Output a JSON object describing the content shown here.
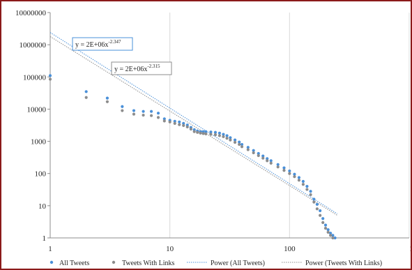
{
  "chart_data": {
    "type": "scatter",
    "x_scale": "log",
    "y_scale": "log",
    "xlim": [
      1,
      1000
    ],
    "ylim": [
      1,
      10000000
    ],
    "x_ticks": [
      "1",
      "10",
      "100",
      "1000"
    ],
    "y_ticks": [
      "1",
      "10",
      "100",
      "1000",
      "10000",
      "100000",
      "1000000",
      "10000000"
    ],
    "grid": "vertical",
    "legend_position": "bottom",
    "series": [
      {
        "name": "All Tweets",
        "kind": "points",
        "color": "#4a90d9",
        "x": [
          1,
          2,
          3,
          4,
          5,
          6,
          7,
          8,
          9,
          10,
          11,
          12,
          13,
          14,
          15,
          16,
          17,
          18,
          19,
          20,
          22,
          24,
          26,
          28,
          30,
          32,
          35,
          38,
          40,
          45,
          50,
          55,
          60,
          65,
          70,
          80,
          90,
          100,
          110,
          120,
          130,
          140,
          150,
          160,
          170,
          180,
          190,
          200,
          210,
          220,
          230,
          240
        ],
        "y": [
          110000,
          35000,
          22000,
          12000,
          9000,
          8500,
          8500,
          7500,
          5000,
          4500,
          4200,
          4000,
          3600,
          3200,
          2700,
          2300,
          2100,
          2000,
          2000,
          2000,
          1950,
          1900,
          1800,
          1650,
          1500,
          1300,
          1100,
          950,
          800,
          650,
          520,
          420,
          350,
          290,
          250,
          190,
          150,
          120,
          95,
          75,
          57,
          40,
          28,
          16,
          11,
          7,
          4,
          2.5,
          1.8,
          1.4,
          1.2,
          1
        ]
      },
      {
        "name": "Tweets With Links",
        "kind": "points",
        "color": "#8c8c8c",
        "x": [
          1,
          2,
          3,
          4,
          5,
          6,
          7,
          8,
          9,
          10,
          11,
          12,
          13,
          14,
          15,
          16,
          17,
          18,
          19,
          20,
          22,
          24,
          26,
          28,
          30,
          32,
          35,
          38,
          40,
          45,
          50,
          55,
          60,
          65,
          70,
          80,
          90,
          100,
          110,
          120,
          130,
          140,
          150,
          160,
          170,
          180,
          190,
          200,
          210,
          220,
          230
        ],
        "y": [
          85000,
          23000,
          17000,
          9000,
          7000,
          6500,
          6300,
          5500,
          4300,
          4000,
          3600,
          3300,
          3100,
          2800,
          2400,
          2000,
          1900,
          1800,
          1750,
          1700,
          1650,
          1600,
          1500,
          1400,
          1250,
          1100,
          930,
          800,
          680,
          550,
          440,
          360,
          300,
          250,
          210,
          160,
          125,
          100,
          80,
          62,
          46,
          32,
          22,
          13,
          8,
          5,
          3,
          2,
          1.5,
          1.2,
          1
        ]
      },
      {
        "name": "Power (All Tweets)",
        "kind": "trendline",
        "color": "#4a90d9",
        "a": 2400000,
        "b": -2.347,
        "equation": "y = 2E+06x",
        "exponent": "-2.347"
      },
      {
        "name": "Power (Tweets With Links)",
        "kind": "trendline",
        "color": "#8c8c8c",
        "a": 1800000,
        "b": -2.315,
        "equation": "y = 2E+06x",
        "exponent": "-2.315"
      }
    ]
  }
}
